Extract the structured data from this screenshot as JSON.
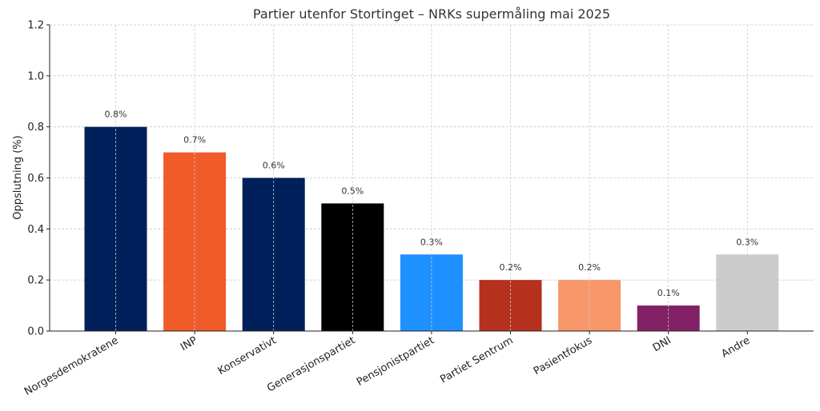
{
  "chart_data": {
    "type": "bar",
    "title": "Partier utenfor Stortinget – NRKs supermåling mai 2025",
    "xlabel": "",
    "ylabel": "Oppslutning (%)",
    "ylim": [
      0,
      1.2
    ],
    "yticks": [
      "0.0",
      "0.2",
      "0.4",
      "0.6",
      "0.8",
      "1.0",
      "1.2"
    ],
    "grid": true,
    "categories": [
      "Norgesdemokratene",
      "INP",
      "Konservativt",
      "Generasjonspartiet",
      "Pensjonistpartiet",
      "Partiet Sentrum",
      "Pasientfokus",
      "DNI",
      "Andre"
    ],
    "values": [
      0.8,
      0.7,
      0.6,
      0.5,
      0.3,
      0.2,
      0.2,
      0.1,
      0.3
    ],
    "data_labels": [
      "0.8%",
      "0.7%",
      "0.6%",
      "0.5%",
      "0.3%",
      "0.2%",
      "0.2%",
      "0.1%",
      "0.3%"
    ],
    "colors": [
      "#00205B",
      "#F15A29",
      "#00205B",
      "#000000",
      "#1E90FF",
      "#B5311E",
      "#F7976A",
      "#822165",
      "#CCCCCC"
    ]
  }
}
